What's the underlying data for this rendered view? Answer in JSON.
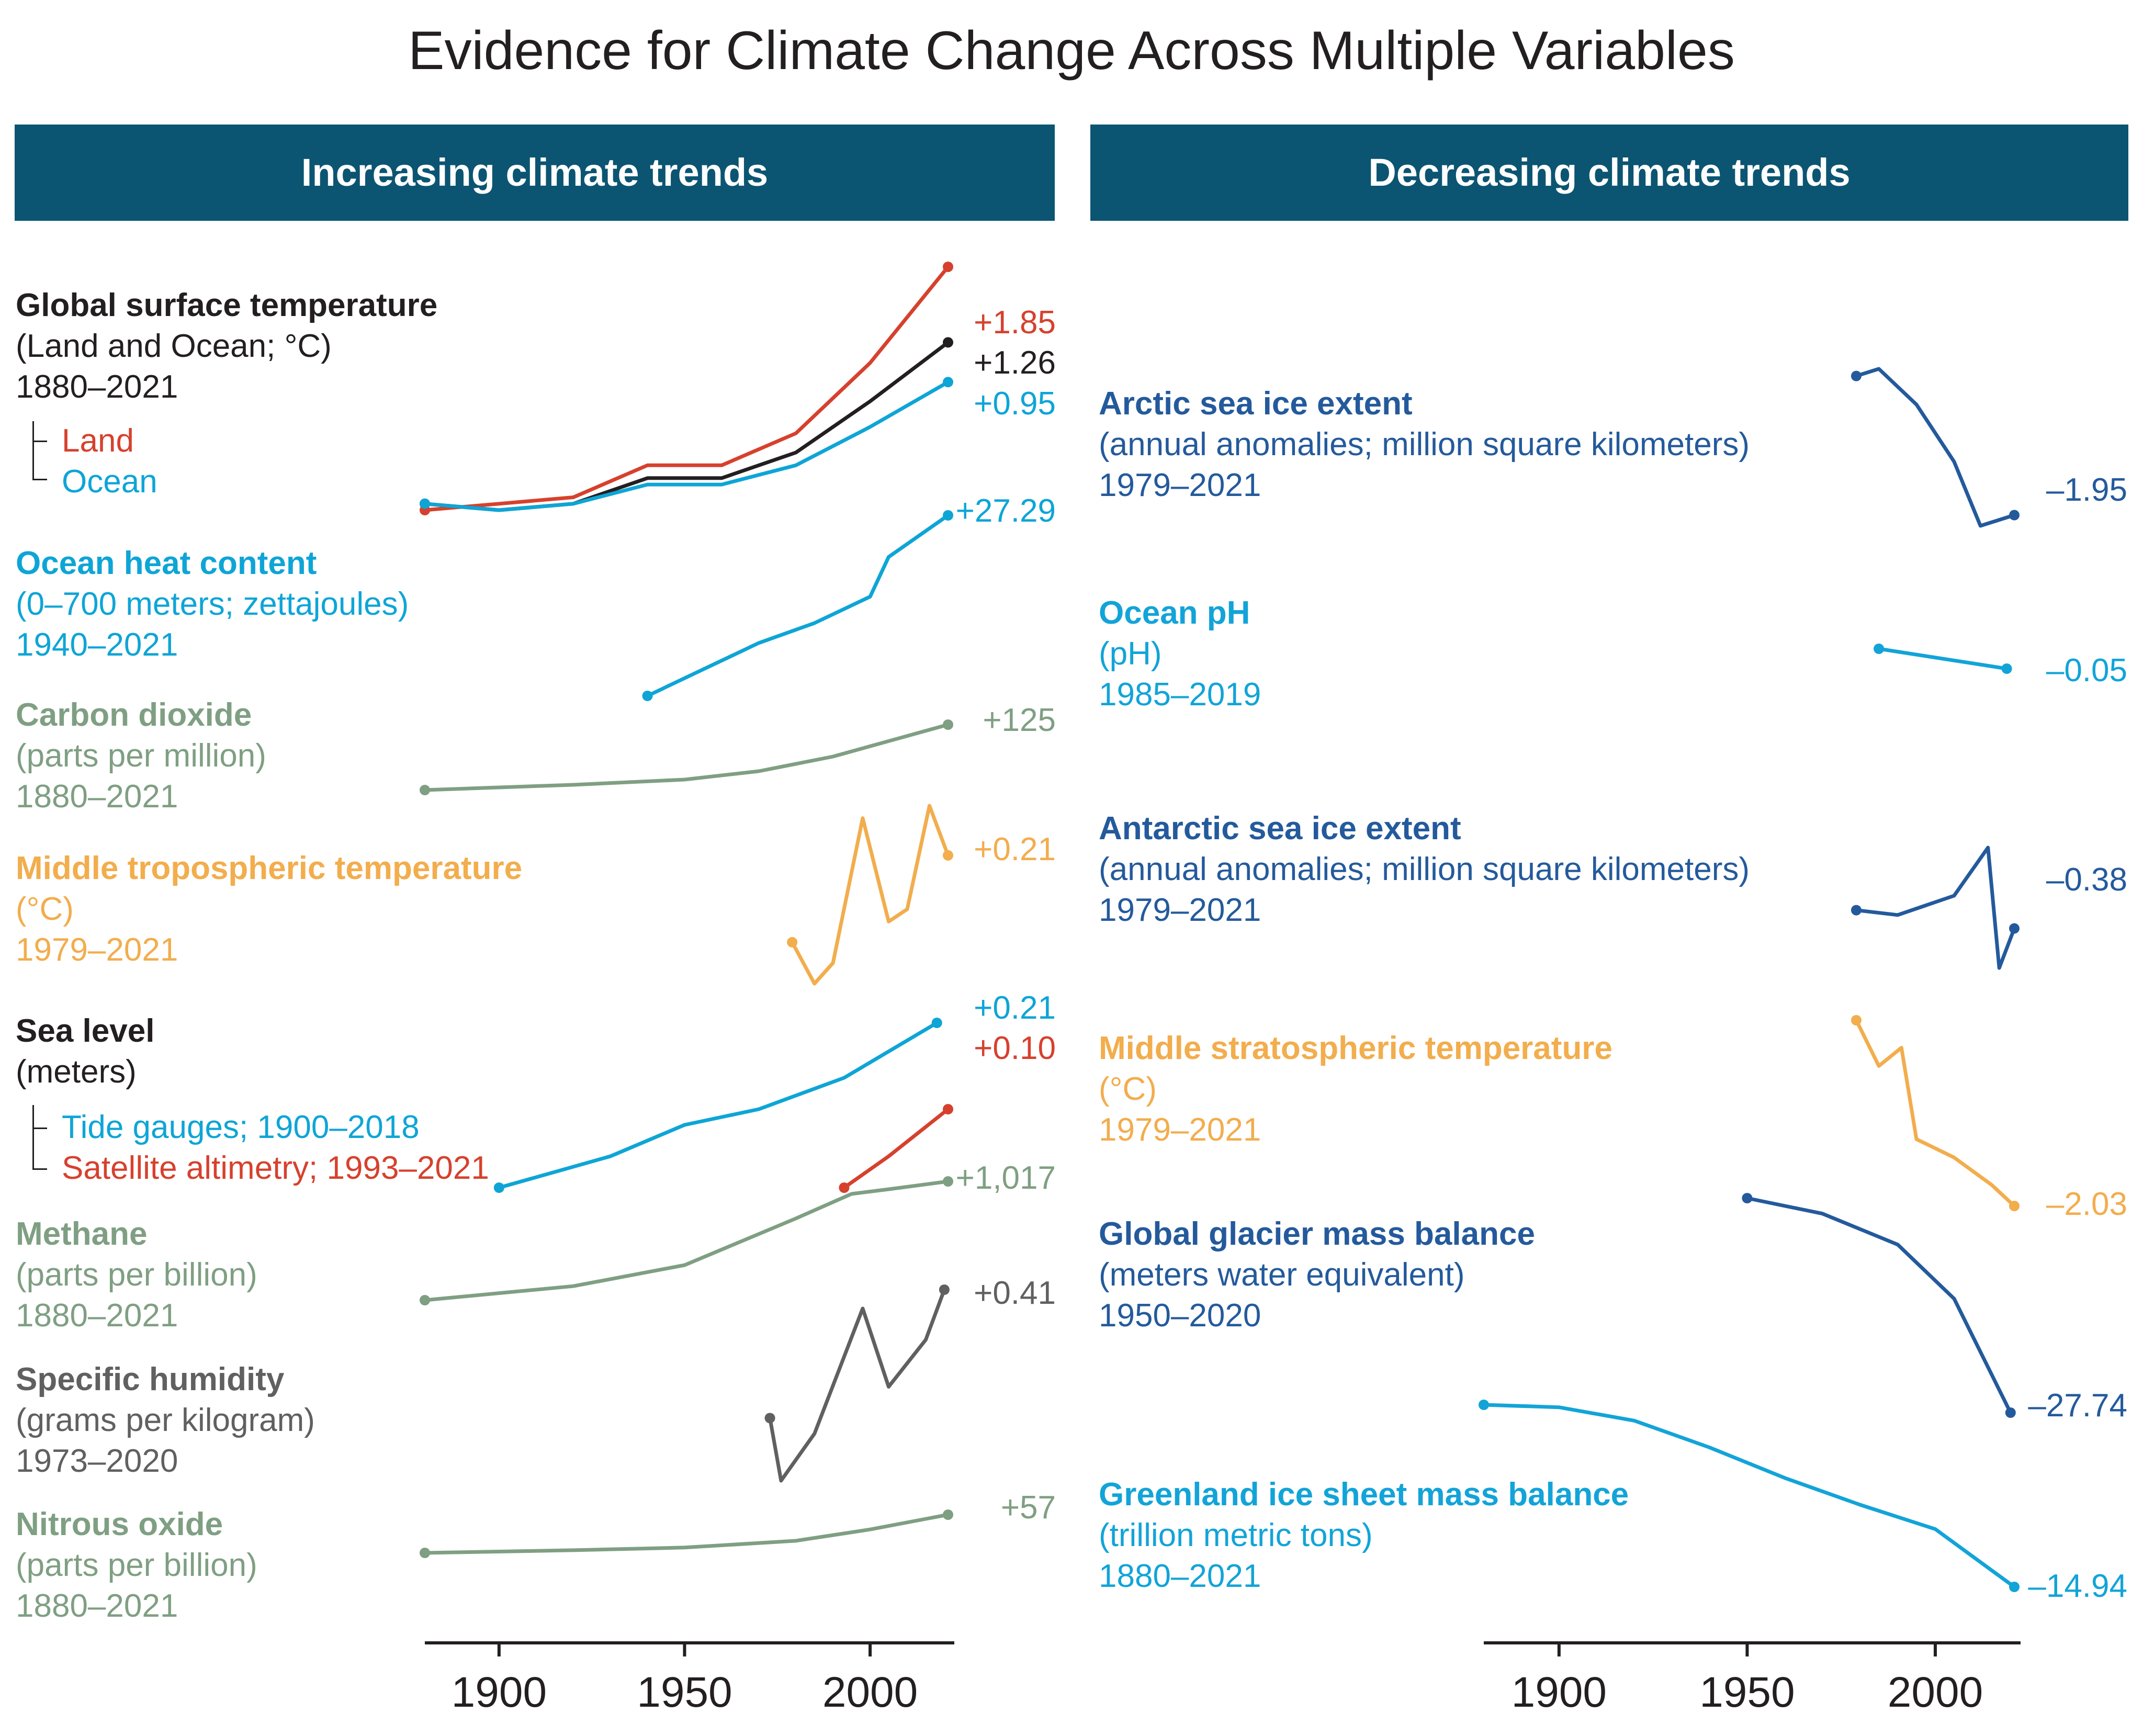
{
  "title": "Evidence for Climate Change Across Multiple Variables",
  "headers": {
    "left": "Increasing climate trends",
    "right": "Decreasing climate trends"
  },
  "colors": {
    "header_bg": "#0b5572",
    "red": "#d6412d",
    "black": "#231f20",
    "cyan": "#0ea5d6",
    "sage": "#7f9f82",
    "orange": "#f2ad4d",
    "gray": "#606060",
    "navy": "#245a9c",
    "cyan2": "#12a4d8"
  },
  "chart_data": [
    {
      "panel": "increasing",
      "type": "line",
      "x_axis": {
        "ticks": [
          1900,
          1950,
          2000
        ],
        "xlim": [
          1880,
          2021
        ]
      },
      "variables": [
        {
          "title": "Global surface temperature",
          "units": "(Land and Ocean; °C)",
          "range": "1880–2021",
          "color": "#231f20",
          "series": [
            {
              "name": "Land",
              "color": "#d6412d",
              "x": [
                1880,
                1900,
                1920,
                1940,
                1960,
                1980,
                2000,
                2021
              ],
              "values": [
                -0.05,
                0.0,
                0.05,
                0.3,
                0.3,
                0.55,
                1.1,
                1.85
              ]
            },
            {
              "name": "",
              "color": "#231f20",
              "x": [
                1880,
                1900,
                1920,
                1940,
                1960,
                1980,
                2000,
                2021
              ],
              "values": [
                0.0,
                -0.05,
                0.0,
                0.2,
                0.2,
                0.4,
                0.8,
                1.26
              ]
            },
            {
              "name": "Ocean",
              "color": "#0ea5d6",
              "x": [
                1880,
                1900,
                1920,
                1940,
                1960,
                1980,
                2000,
                2021
              ],
              "values": [
                0.0,
                -0.05,
                0.0,
                0.15,
                0.15,
                0.3,
                0.6,
                0.95
              ]
            }
          ],
          "change_labels": [
            "+1.85",
            "+1.26",
            "+0.95"
          ]
        },
        {
          "title": "Ocean heat content",
          "units": "(0–700 meters; zettajoules)",
          "range": "1940–2021",
          "color": "#0ea5d6",
          "series": [
            {
              "name": "",
              "color": "#0ea5d6",
              "x": [
                1940,
                1955,
                1970,
                1985,
                2000,
                2005,
                2021
              ],
              "values": [
                0,
                4,
                8,
                11,
                15,
                21,
                27.29
              ]
            }
          ],
          "change_labels": [
            "+27.29"
          ]
        },
        {
          "title": "Carbon dioxide",
          "units": "(parts per million)",
          "range": "1880–2021",
          "color": "#7f9f82",
          "series": [
            {
              "name": "",
              "color": "#7f9f82",
              "x": [
                1880,
                1920,
                1950,
                1970,
                1990,
                2021
              ],
              "values": [
                0,
                10,
                20,
                36,
                64,
                125
              ]
            }
          ],
          "change_labels": [
            "+125"
          ]
        },
        {
          "title": "Middle tropospheric temperature",
          "units": "(°C)",
          "range": "1979–2021",
          "color": "#f2ad4d",
          "series": [
            {
              "name": "",
              "color": "#f2ad4d",
              "x": [
                1979,
                1985,
                1990,
                1998,
                2005,
                2010,
                2016,
                2021
              ],
              "values": [
                0,
                -0.1,
                -0.05,
                0.3,
                0.05,
                0.08,
                0.33,
                0.21
              ]
            }
          ],
          "change_labels": [
            "+0.21"
          ]
        },
        {
          "title": "Sea level",
          "units": "(meters)",
          "range": "",
          "color": "#231f20",
          "series": [
            {
              "name": "Tide gauges; 1900–2018",
              "color": "#0ea5d6",
              "x": [
                1900,
                1930,
                1950,
                1970,
                1993,
                2018
              ],
              "values": [
                0,
                0.04,
                0.08,
                0.1,
                0.14,
                0.21
              ]
            },
            {
              "name": "Satellite altimetry; 1993–2021",
              "color": "#d6412d",
              "x": [
                1993,
                2005,
                2021
              ],
              "values": [
                0,
                0.04,
                0.1
              ]
            }
          ],
          "change_labels": [
            "+0.21",
            "+0.10"
          ]
        },
        {
          "title": "Methane",
          "units": "(parts per billion)",
          "range": "1880–2021",
          "color": "#7f9f82",
          "series": [
            {
              "name": "",
              "color": "#7f9f82",
              "x": [
                1880,
                1920,
                1950,
                1980,
                1995,
                2005,
                2021
              ],
              "values": [
                0,
                120,
                300,
                700,
                910,
                950,
                1017
              ]
            }
          ],
          "change_labels": [
            "+1,017"
          ]
        },
        {
          "title": "Specific humidity",
          "units": "(grams per kilogram)",
          "range": "1973–2020",
          "color": "#606060",
          "series": [
            {
              "name": "",
              "color": "#606060",
              "x": [
                1973,
                1976,
                1985,
                1998,
                2005,
                2015,
                2020
              ],
              "values": [
                0,
                -0.2,
                -0.05,
                0.35,
                0.1,
                0.25,
                0.41
              ]
            }
          ],
          "change_labels": [
            "+0.41"
          ]
        },
        {
          "title": "Nitrous oxide",
          "units": "(parts per billion)",
          "range": "1880–2021",
          "color": "#7f9f82",
          "series": [
            {
              "name": "",
              "color": "#7f9f82",
              "x": [
                1880,
                1920,
                1950,
                1980,
                2000,
                2021
              ],
              "values": [
                0,
                4,
                8,
                18,
                35,
                57
              ]
            }
          ],
          "change_labels": [
            "+57"
          ]
        }
      ]
    },
    {
      "panel": "decreasing",
      "type": "line",
      "x_axis": {
        "ticks": [
          1900,
          1950,
          2000
        ],
        "xlim": [
          1880,
          2021
        ]
      },
      "variables": [
        {
          "title": "Arctic sea ice extent",
          "units": "(annual anomalies; million square kilometers)",
          "range": "1979–2021",
          "color": "#245a9c",
          "series": [
            {
              "name": "",
              "color": "#245a9c",
              "x": [
                1979,
                1985,
                1995,
                2005,
                2012,
                2021
              ],
              "values": [
                0,
                0.1,
                -0.4,
                -1.2,
                -2.1,
                -1.95
              ]
            }
          ],
          "change_labels": [
            "–1.95"
          ]
        },
        {
          "title": "Ocean pH",
          "units": "(pH)",
          "range": "1985–2019",
          "color": "#12a4d8",
          "series": [
            {
              "name": "",
              "color": "#12a4d8",
              "x": [
                1985,
                2019
              ],
              "values": [
                0,
                -0.05
              ]
            }
          ],
          "change_labels": [
            "–0.05"
          ]
        },
        {
          "title": "Antarctic sea ice extent",
          "units": "(annual anomalies; million square kilometers)",
          "range": "1979–2021",
          "color": "#245a9c",
          "series": [
            {
              "name": "",
              "color": "#245a9c",
              "x": [
                1979,
                1990,
                2005,
                2014,
                2017,
                2021
              ],
              "values": [
                0,
                -0.1,
                0.3,
                1.3,
                -1.2,
                -0.38
              ]
            }
          ],
          "change_labels": [
            "–0.38"
          ]
        },
        {
          "title": "Middle stratospheric temperature",
          "units": "(°C)",
          "range": "1979–2021",
          "color": "#f2ad4d",
          "series": [
            {
              "name": "",
              "color": "#f2ad4d",
              "x": [
                1979,
                1985,
                1991,
                1995,
                2005,
                2015,
                2021
              ],
              "values": [
                0,
                -0.5,
                -0.3,
                -1.3,
                -1.5,
                -1.8,
                -2.03
              ]
            }
          ],
          "change_labels": [
            "–2.03"
          ]
        },
        {
          "title": "Global glacier mass balance",
          "units": "(meters water equivalent)",
          "range": "1950–2020",
          "color": "#245a9c",
          "series": [
            {
              "name": "",
              "color": "#245a9c",
              "x": [
                1950,
                1970,
                1990,
                2005,
                2020
              ],
              "values": [
                0,
                -2,
                -6,
                -13,
                -27.74
              ]
            }
          ],
          "change_labels": [
            "–27.74"
          ]
        },
        {
          "title": "Greenland ice sheet mass balance",
          "units": "(trillion metric tons)",
          "range": "1880–2021",
          "color": "#12a4d8",
          "series": [
            {
              "name": "",
              "color": "#12a4d8",
              "x": [
                1880,
                1900,
                1920,
                1940,
                1960,
                1980,
                2000,
                2021
              ],
              "values": [
                0,
                -0.2,
                -1.3,
                -3.5,
                -6,
                -8.2,
                -10.2,
                -14.94
              ]
            }
          ],
          "change_labels": [
            "–14.94"
          ]
        }
      ]
    }
  ]
}
